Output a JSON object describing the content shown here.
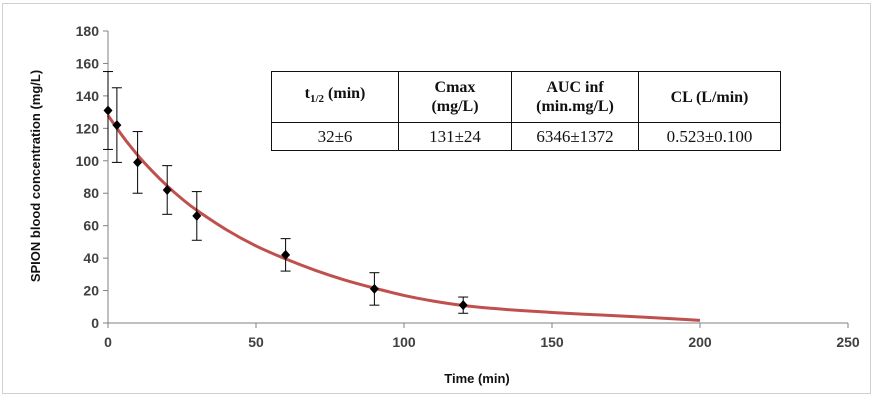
{
  "chart_data": {
    "type": "scatter",
    "xlabel": "Time (min)",
    "ylabel": "SPION blood concentration (mg/L)",
    "xlim": [
      0,
      250
    ],
    "ylim": [
      0,
      180
    ],
    "xticks": [
      "0",
      "50",
      "100",
      "150",
      "200",
      "250"
    ],
    "yticks": [
      "0",
      "20",
      "40",
      "60",
      "80",
      "100",
      "120",
      "140",
      "160",
      "180"
    ],
    "grid": false,
    "series": [
      {
        "kind": "points_with_error_bars",
        "color": "#000000",
        "points": [
          {
            "x": 0,
            "y": 131,
            "err": 24
          },
          {
            "x": 3,
            "y": 122,
            "err": 23
          },
          {
            "x": 10,
            "y": 99,
            "err": 19
          },
          {
            "x": 20,
            "y": 82,
            "err": 15
          },
          {
            "x": 30,
            "y": 66,
            "err": 15
          },
          {
            "x": 60,
            "y": 42,
            "err": 10
          },
          {
            "x": 90,
            "y": 21,
            "err": 10
          },
          {
            "x": 120,
            "y": 11,
            "err": 5
          }
        ]
      },
      {
        "kind": "fit_line",
        "color": "#c0504d",
        "x": [
          0,
          5,
          10,
          15,
          20,
          25,
          30,
          40,
          50,
          60,
          70,
          80,
          90,
          100,
          110,
          120,
          130,
          140,
          150,
          160,
          170,
          180,
          190,
          200
        ],
        "y": [
          128,
          115,
          103.5,
          93.5,
          84.5,
          76.5,
          69.5,
          57.5,
          47.5,
          39.5,
          32.5,
          26.5,
          21.5,
          17,
          13.5,
          10.8,
          9,
          7.6,
          6.5,
          5.5,
          4.6,
          3.7,
          2.7,
          1.6
        ]
      }
    ]
  },
  "table": {
    "headers": [
      {
        "main": "t",
        "sub": "1/2",
        "suffix": " (min)"
      },
      {
        "line1": "Cmax",
        "line2": "(mg/L)"
      },
      {
        "line1": "AUC inf",
        "line2": "(min.mg/L)"
      },
      {
        "line1": "CL (L/min)",
        "line2": ""
      }
    ],
    "values": [
      "32±6",
      "131±24",
      "6346±1372",
      "0.523±0.100"
    ]
  }
}
